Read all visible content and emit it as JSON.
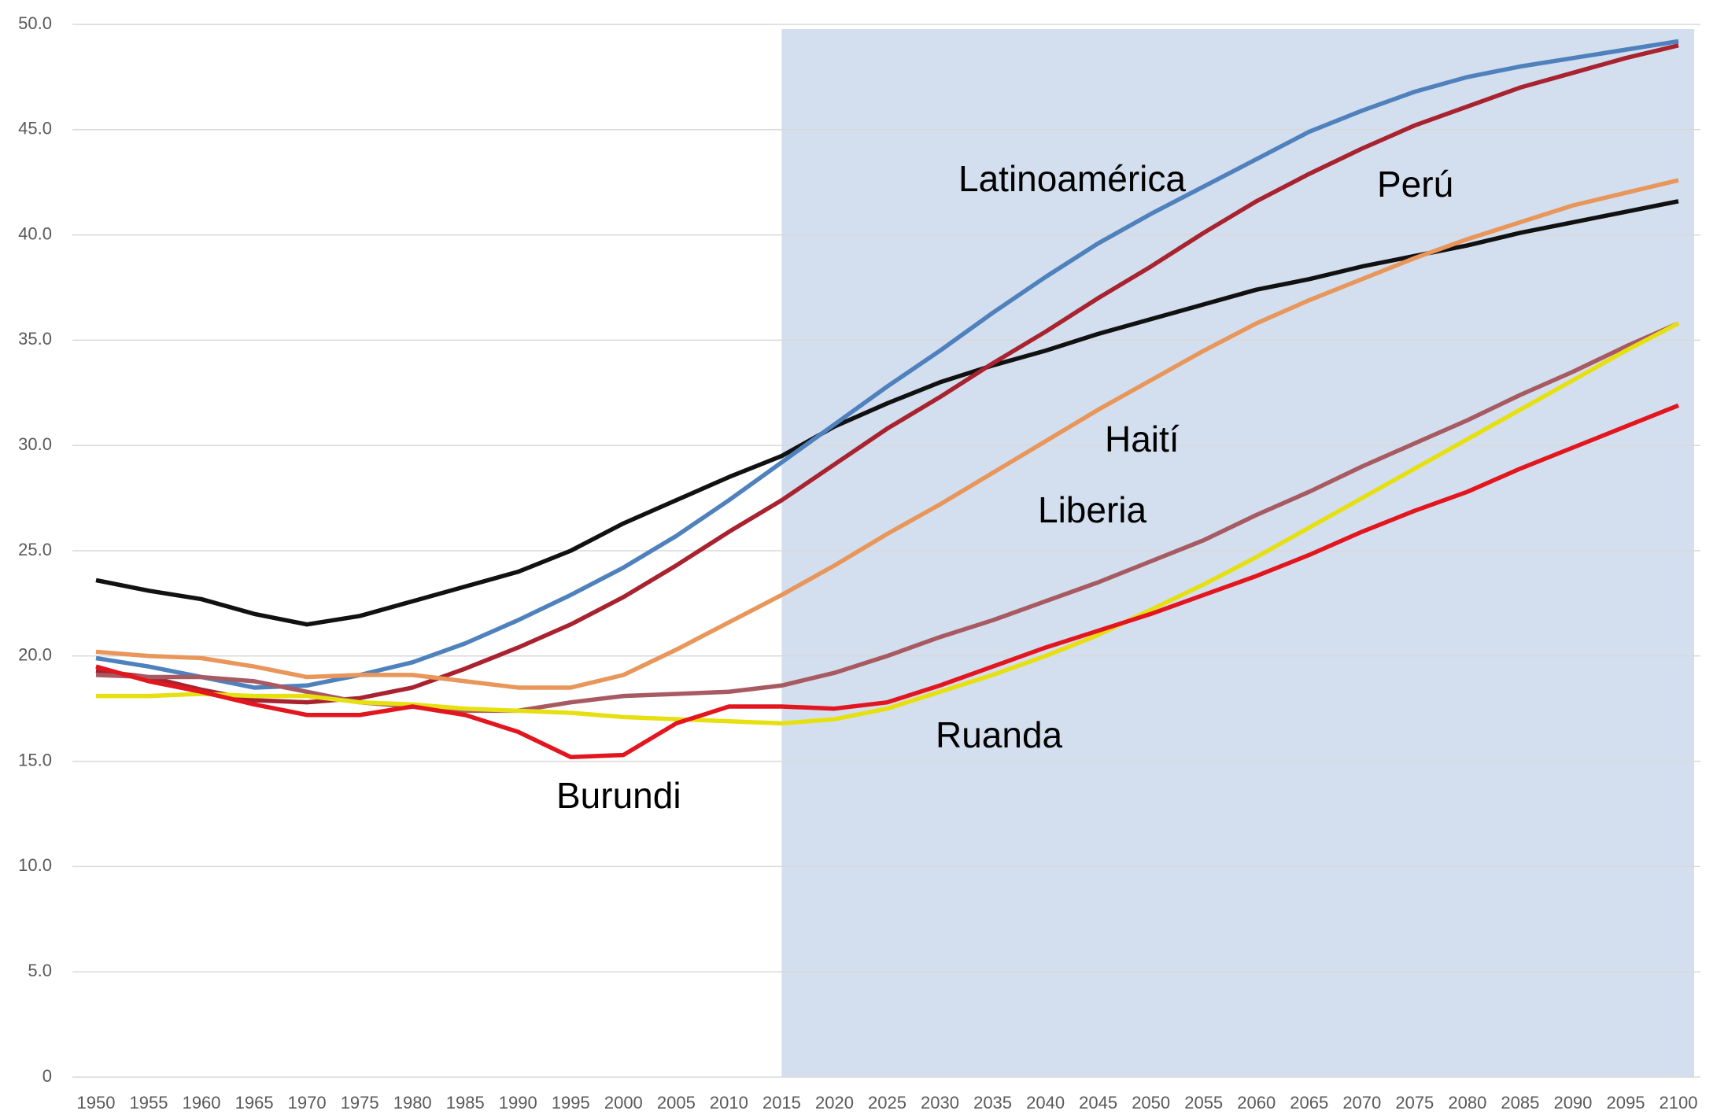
{
  "chart_data": {
    "type": "line",
    "x": [
      1950,
      1955,
      1960,
      1965,
      1970,
      1975,
      1980,
      1985,
      1990,
      1995,
      2000,
      2005,
      2010,
      2015,
      2020,
      2025,
      2030,
      2035,
      2040,
      2045,
      2050,
      2055,
      2060,
      2065,
      2070,
      2075,
      2080,
      2085,
      2090,
      2095,
      2100
    ],
    "xlim": [
      1950,
      2100
    ],
    "ylim": [
      0,
      50
    ],
    "yticks": [
      0,
      {
        "value": 5,
        "label": "5.0"
      },
      {
        "value": 10,
        "label": "10.0"
      },
      {
        "value": 15,
        "label": "15.0"
      },
      {
        "value": 20,
        "label": "20.0"
      },
      {
        "value": 25,
        "label": "25.0"
      },
      {
        "value": 30,
        "label": "30.0"
      },
      {
        "value": 35,
        "label": "35.0"
      },
      {
        "value": 40,
        "label": "40.0"
      },
      {
        "value": 45,
        "label": "45.0"
      },
      {
        "value": 50,
        "label": "50.0"
      }
    ],
    "grid": true,
    "shaded_range": [
      2015,
      2100
    ],
    "shade_color": "#d3dfee",
    "series": [
      {
        "color": "#111111",
        "values": [
          23.6,
          23.1,
          22.7,
          22.0,
          21.5,
          21.9,
          22.6,
          23.3,
          24.0,
          25.0,
          26.3,
          27.4,
          28.5,
          29.5,
          30.9,
          32.0,
          33.0,
          33.8,
          34.5,
          35.3,
          36.0,
          36.7,
          37.4,
          37.9,
          38.5,
          39.0,
          39.5,
          40.1,
          40.6,
          41.1,
          41.6
        ]
      },
      {
        "name": "Latinoamérica",
        "color": "#4f81bd",
        "values": [
          19.9,
          19.5,
          19.0,
          18.5,
          18.6,
          19.1,
          19.7,
          20.6,
          21.7,
          22.9,
          24.2,
          25.7,
          27.4,
          29.2,
          31.0,
          32.8,
          34.5,
          36.3,
          38.0,
          39.6,
          41.0,
          42.3,
          43.6,
          44.9,
          45.9,
          46.8,
          47.5,
          48.0,
          48.4,
          48.8,
          49.2
        ]
      },
      {
        "name": "Perú",
        "color": "#a8232f",
        "values": [
          19.3,
          19.0,
          18.4,
          17.9,
          17.8,
          18.0,
          18.5,
          19.4,
          20.4,
          21.5,
          22.8,
          24.3,
          25.9,
          27.4,
          29.1,
          30.8,
          32.3,
          33.9,
          35.4,
          37.0,
          38.5,
          40.1,
          41.6,
          42.9,
          44.1,
          45.2,
          46.1,
          47.0,
          47.7,
          48.4,
          49.0
        ]
      },
      {
        "name": "Haití",
        "color": "#e8965a",
        "values": [
          20.2,
          20.0,
          19.9,
          19.5,
          19.0,
          19.1,
          19.1,
          18.8,
          18.5,
          18.5,
          19.1,
          20.3,
          21.6,
          22.9,
          24.3,
          25.8,
          27.2,
          28.7,
          30.2,
          31.7,
          33.1,
          34.5,
          35.8,
          36.9,
          37.9,
          38.9,
          39.8,
          40.6,
          41.4,
          42.0,
          42.6
        ]
      },
      {
        "name": "Liberia",
        "color": "#a85a62",
        "values": [
          19.1,
          19.0,
          19.0,
          18.8,
          18.3,
          17.8,
          17.6,
          17.4,
          17.4,
          17.8,
          18.1,
          18.2,
          18.3,
          18.6,
          19.2,
          20.0,
          20.9,
          21.7,
          22.6,
          23.5,
          24.5,
          25.5,
          26.7,
          27.8,
          29.0,
          30.1,
          31.2,
          32.4,
          33.5,
          34.7,
          35.8
        ]
      },
      {
        "name": "Ruanda",
        "color": "#e6e010",
        "values": [
          18.1,
          18.1,
          18.2,
          18.1,
          18.1,
          17.8,
          17.7,
          17.5,
          17.4,
          17.3,
          17.1,
          17.0,
          16.9,
          16.8,
          17.0,
          17.5,
          18.3,
          19.1,
          20.0,
          21.0,
          22.2,
          23.4,
          24.7,
          26.1,
          27.5,
          28.9,
          30.3,
          31.7,
          33.1,
          34.5,
          35.8
        ]
      },
      {
        "name": "Burundi",
        "color": "#e3161f",
        "values": [
          19.5,
          18.8,
          18.3,
          17.7,
          17.2,
          17.2,
          17.6,
          17.2,
          16.4,
          15.2,
          15.3,
          16.8,
          17.6,
          17.6,
          17.5,
          17.8,
          18.6,
          19.5,
          20.4,
          21.2,
          22.0,
          22.9,
          23.8,
          24.8,
          25.9,
          26.9,
          27.8,
          28.9,
          29.9,
          30.9,
          31.9
        ]
      }
    ]
  }
}
